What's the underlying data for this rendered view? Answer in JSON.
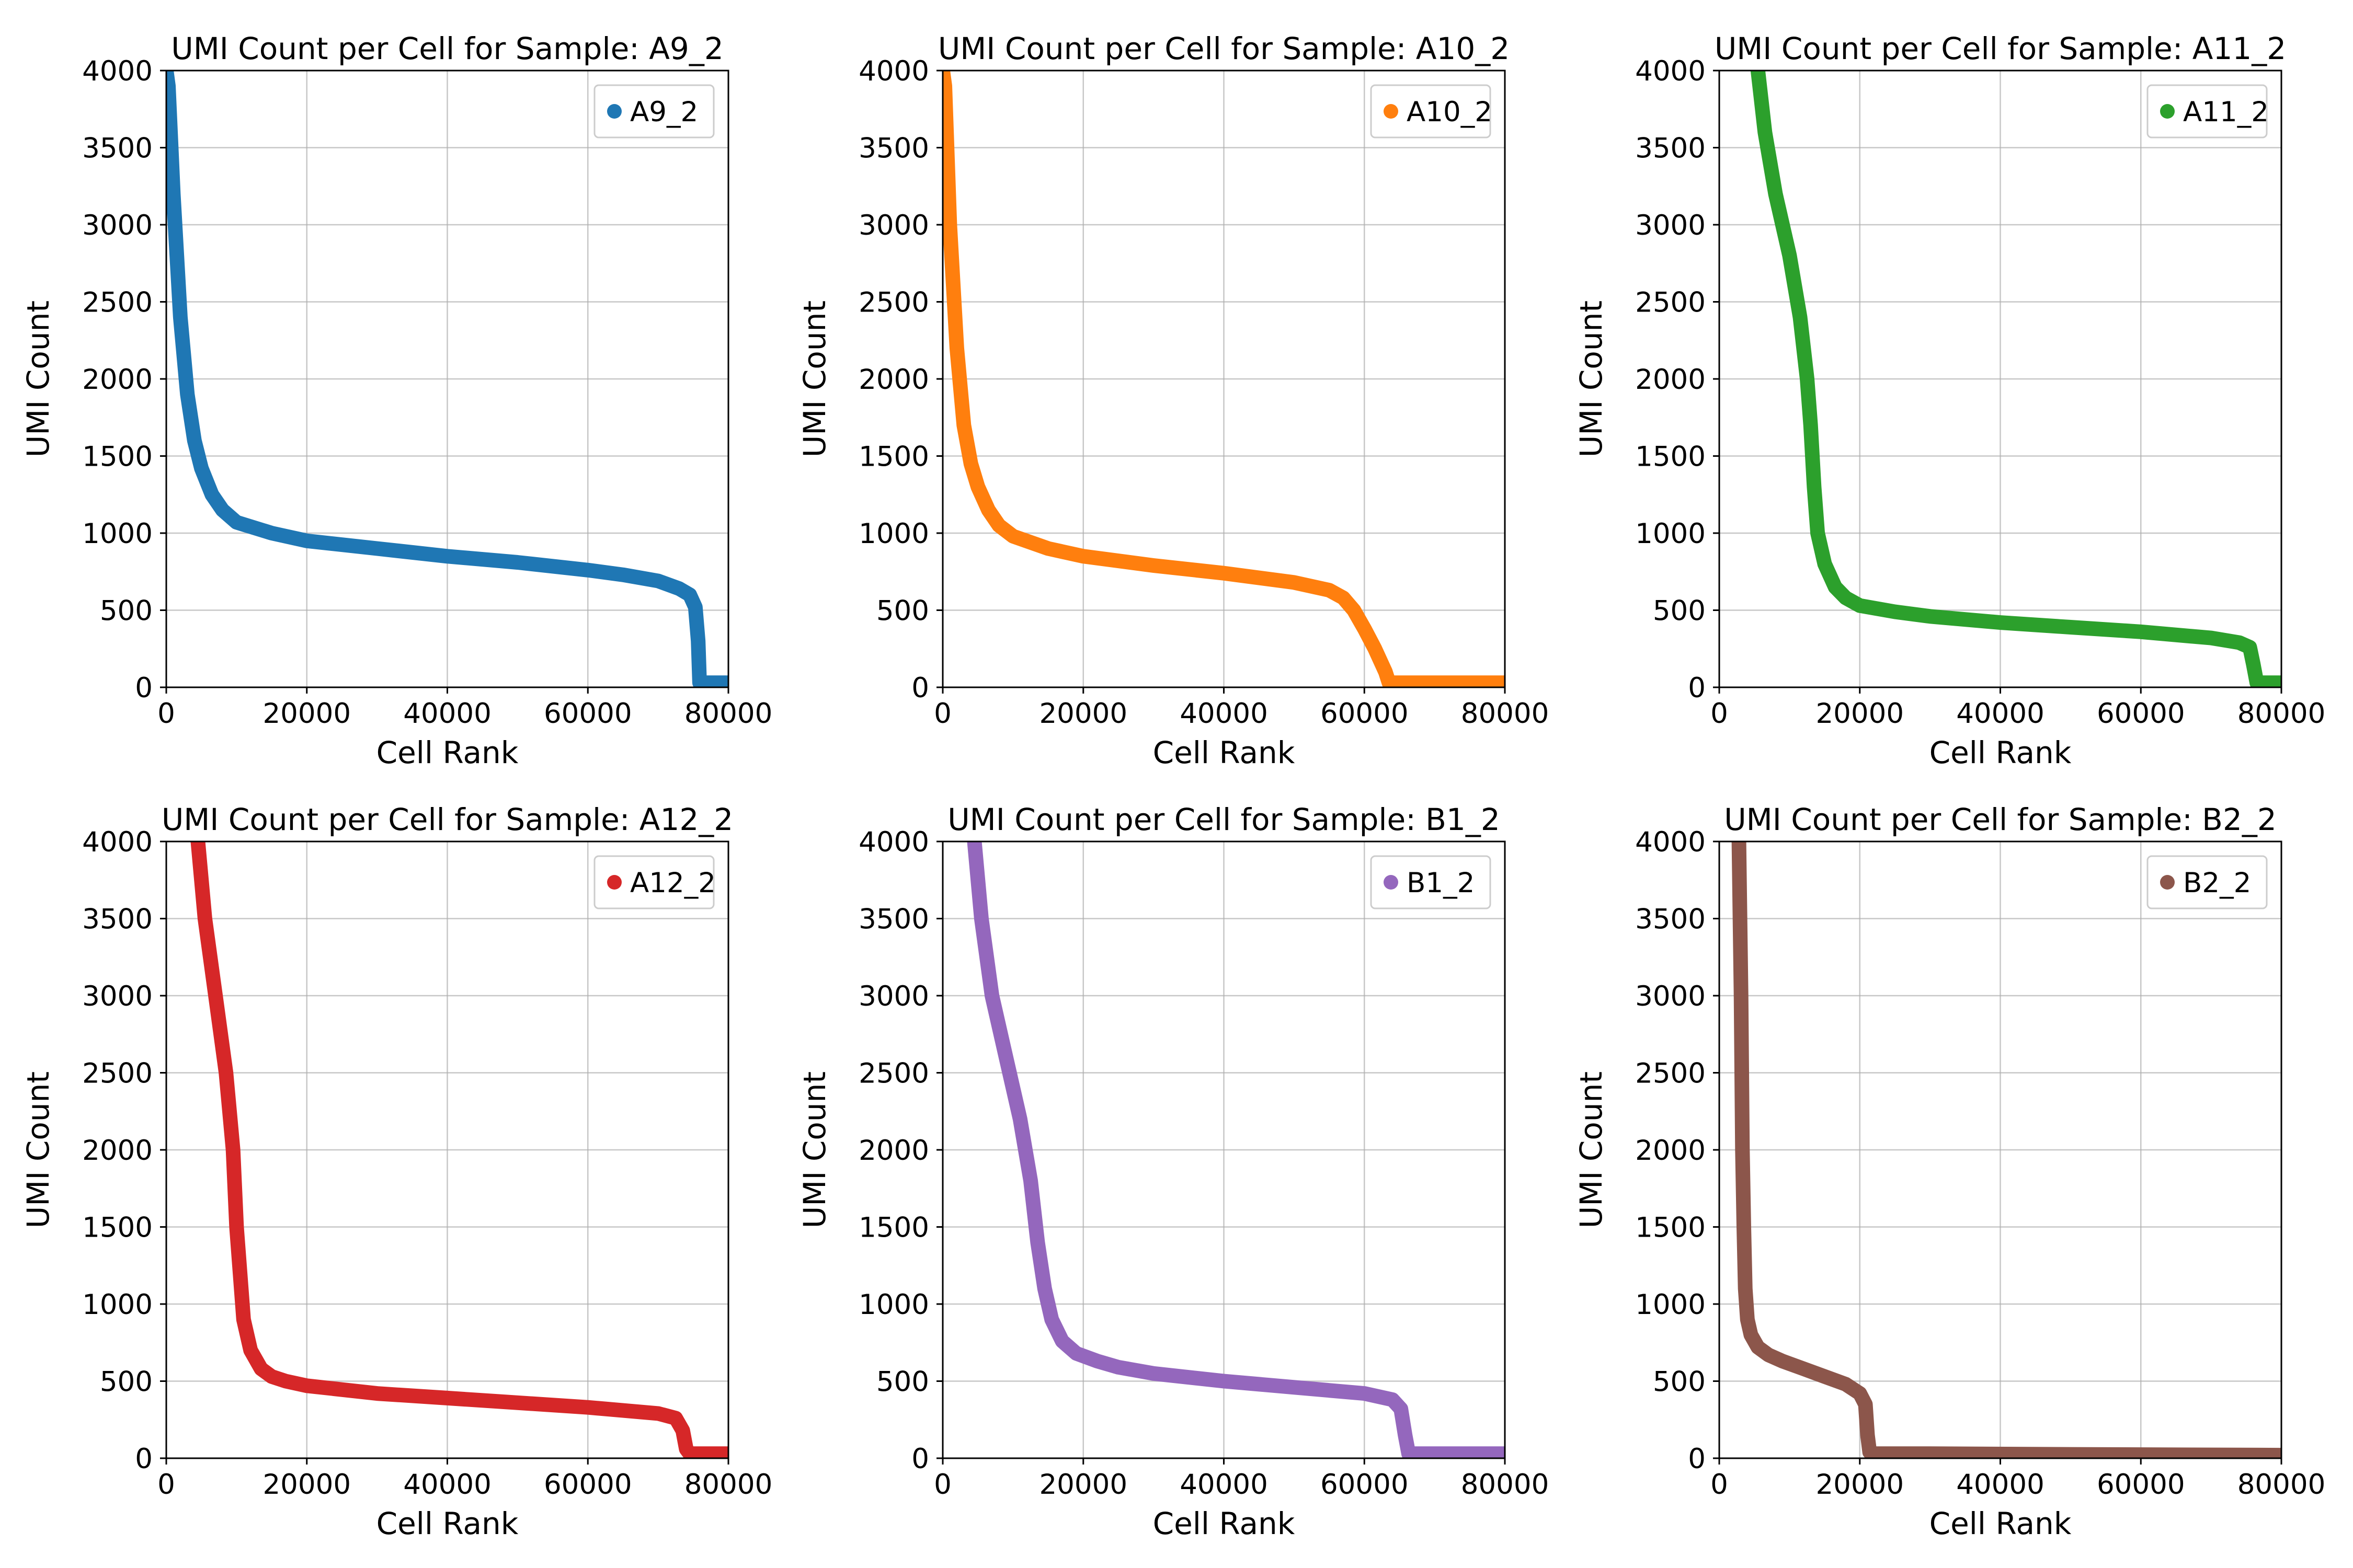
{
  "chart_data": [
    {
      "type": "line",
      "title": "UMI Count per Cell for Sample: A9_2",
      "xlabel": "Cell Rank",
      "ylabel": "UMI Count",
      "xlim": [
        0,
        80000
      ],
      "ylim": [
        0,
        4000
      ],
      "xticks": [
        "0",
        "20000",
        "40000",
        "60000",
        "80000"
      ],
      "yticks": [
        "0",
        "500",
        "1000",
        "1500",
        "2000",
        "2500",
        "3000",
        "3500",
        "4000"
      ],
      "grid": true,
      "legend_position": "top-right",
      "color": "#1f77b4",
      "series": [
        {
          "name": "A9_2",
          "x": [
            0,
            300,
            1000,
            2000,
            3000,
            4000,
            5000,
            6500,
            8000,
            10000,
            15000,
            20000,
            30000,
            40000,
            50000,
            60000,
            65000,
            70000,
            73000,
            74500,
            75300,
            75700,
            75900,
            76200,
            80000
          ],
          "y": [
            4000,
            3900,
            3200,
            2400,
            1900,
            1600,
            1420,
            1250,
            1150,
            1070,
            1000,
            950,
            900,
            850,
            810,
            760,
            730,
            690,
            640,
            600,
            520,
            300,
            30,
            30,
            30
          ]
        }
      ]
    },
    {
      "type": "line",
      "title": "UMI Count per Cell for Sample: A10_2",
      "xlabel": "Cell Rank",
      "ylabel": "UMI Count",
      "xlim": [
        0,
        80000
      ],
      "ylim": [
        0,
        4000
      ],
      "xticks": [
        "0",
        "20000",
        "40000",
        "60000",
        "80000"
      ],
      "yticks": [
        "0",
        "500",
        "1000",
        "1500",
        "2000",
        "2500",
        "3000",
        "3500",
        "4000"
      ],
      "grid": true,
      "legend_position": "top-right",
      "color": "#ff7f0e",
      "series": [
        {
          "name": "A10_2",
          "x": [
            0,
            300,
            1000,
            2000,
            3000,
            4000,
            5000,
            6500,
            8000,
            10000,
            15000,
            20000,
            30000,
            40000,
            50000,
            55000,
            57000,
            58500,
            60000,
            61500,
            63000,
            63500,
            65000,
            80000
          ],
          "y": [
            4000,
            3900,
            3000,
            2200,
            1700,
            1450,
            1300,
            1150,
            1050,
            980,
            900,
            850,
            790,
            740,
            680,
            630,
            580,
            500,
            380,
            250,
            100,
            30,
            30,
            30
          ]
        }
      ]
    },
    {
      "type": "line",
      "title": "UMI Count per Cell for Sample: A11_2",
      "xlabel": "Cell Rank",
      "ylabel": "UMI Count",
      "xlim": [
        0,
        80000
      ],
      "ylim": [
        0,
        4000
      ],
      "xticks": [
        "0",
        "20000",
        "40000",
        "60000",
        "80000"
      ],
      "yticks": [
        "0",
        "500",
        "1000",
        "1500",
        "2000",
        "2500",
        "3000",
        "3500",
        "4000"
      ],
      "grid": true,
      "legend_position": "top-right",
      "color": "#2ca02c",
      "series": [
        {
          "name": "A11_2",
          "x": [
            5500,
            6500,
            8000,
            10000,
            11500,
            12500,
            13000,
            13500,
            14000,
            15000,
            16500,
            18000,
            20000,
            25000,
            30000,
            40000,
            50000,
            60000,
            70000,
            74000,
            75500,
            76000,
            76500,
            77500,
            80000
          ],
          "y": [
            4000,
            3600,
            3200,
            2800,
            2400,
            2000,
            1700,
            1300,
            1000,
            800,
            650,
            580,
            530,
            490,
            460,
            420,
            390,
            360,
            320,
            290,
            260,
            150,
            30,
            30,
            30
          ]
        }
      ]
    },
    {
      "type": "line",
      "title": "UMI Count per Cell for Sample: A12_2",
      "xlabel": "Cell Rank",
      "ylabel": "UMI Count",
      "xlim": [
        0,
        80000
      ],
      "ylim": [
        0,
        4000
      ],
      "xticks": [
        "0",
        "20000",
        "40000",
        "60000",
        "80000"
      ],
      "yticks": [
        "0",
        "500",
        "1000",
        "1500",
        "2000",
        "2500",
        "3000",
        "3500",
        "4000"
      ],
      "grid": true,
      "legend_position": "top-right",
      "color": "#d62728",
      "series": [
        {
          "name": "A12_2",
          "x": [
            4500,
            5500,
            7000,
            8500,
            9500,
            10000,
            10500,
            11000,
            12000,
            13500,
            15000,
            17000,
            20000,
            30000,
            40000,
            50000,
            60000,
            70000,
            72500,
            73500,
            74000,
            74500,
            75500,
            80000
          ],
          "y": [
            4000,
            3500,
            3000,
            2500,
            2000,
            1500,
            1200,
            900,
            700,
            580,
            530,
            500,
            470,
            420,
            390,
            360,
            330,
            290,
            260,
            180,
            60,
            30,
            30,
            30
          ]
        }
      ]
    },
    {
      "type": "line",
      "title": "UMI Count per Cell for Sample: B1_2",
      "xlabel": "Cell Rank",
      "ylabel": "UMI Count",
      "xlim": [
        0,
        80000
      ],
      "ylim": [
        0,
        4000
      ],
      "xticks": [
        "0",
        "20000",
        "40000",
        "60000",
        "80000"
      ],
      "yticks": [
        "0",
        "500",
        "1000",
        "1500",
        "2000",
        "2500",
        "3000",
        "3500",
        "4000"
      ],
      "grid": true,
      "legend_position": "top-right",
      "color": "#9467bd",
      "series": [
        {
          "name": "B1_2",
          "x": [
            4500,
            5500,
            7000,
            9000,
            11000,
            12500,
            13500,
            14500,
            15500,
            17000,
            19000,
            22000,
            25000,
            30000,
            40000,
            50000,
            60000,
            64000,
            65200,
            65800,
            66300,
            67500,
            80000
          ],
          "y": [
            4000,
            3500,
            3000,
            2600,
            2200,
            1800,
            1400,
            1100,
            900,
            760,
            680,
            630,
            590,
            550,
            500,
            460,
            420,
            380,
            320,
            150,
            30,
            30,
            30
          ]
        }
      ]
    },
    {
      "type": "line",
      "title": "UMI Count per Cell for Sample: B2_2",
      "xlabel": "Cell Rank",
      "ylabel": "UMI Count",
      "xlim": [
        0,
        80000
      ],
      "ylim": [
        0,
        4000
      ],
      "xticks": [
        "0",
        "20000",
        "40000",
        "60000",
        "80000"
      ],
      "yticks": [
        "0",
        "500",
        "1000",
        "1500",
        "2000",
        "2500",
        "3000",
        "3500",
        "4000"
      ],
      "grid": true,
      "legend_position": "top-right",
      "color": "#8c564b",
      "series": [
        {
          "name": "B2_2",
          "x": [
            2800,
            3100,
            3300,
            3500,
            3700,
            4000,
            4500,
            5500,
            7000,
            9000,
            12000,
            15000,
            18000,
            20000,
            20800,
            21100,
            21400,
            22000,
            30000,
            50000,
            80000
          ],
          "y": [
            4000,
            3000,
            2000,
            1500,
            1100,
            900,
            800,
            720,
            670,
            630,
            580,
            530,
            480,
            420,
            350,
            150,
            40,
            30,
            30,
            25,
            20
          ]
        }
      ]
    }
  ]
}
